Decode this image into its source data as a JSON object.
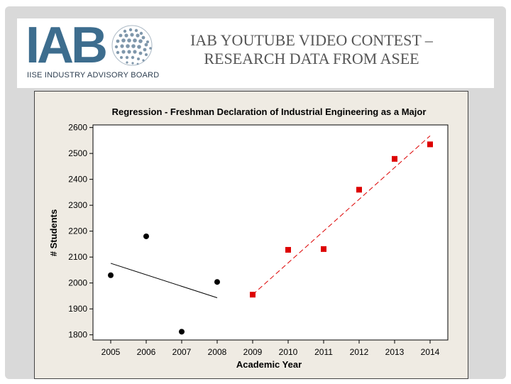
{
  "slide": {
    "title_line1": "IAB YOUTUBE VIDEO CONTEST –",
    "title_line2": "RESEARCH DATA FROM ASEE"
  },
  "logo": {
    "letters": "IAB",
    "caption": "IISE INDUSTRY ADVISORY BOARD",
    "color": "#3d6d8e"
  },
  "chart_data": {
    "type": "scatter",
    "title": "Regression - Freshman Declaration of Industrial Engineering as a Major",
    "xlabel": "Academic Year",
    "ylabel": "# Students",
    "xlim": [
      2004.5,
      2014.5
    ],
    "ylim": [
      1780,
      2610
    ],
    "x_ticks": [
      2005,
      2006,
      2007,
      2008,
      2009,
      2010,
      2011,
      2012,
      2013,
      2014
    ],
    "y_ticks": [
      1800,
      1900,
      2000,
      2100,
      2200,
      2300,
      2400,
      2500,
      2600
    ],
    "grid": false,
    "series": [
      {
        "marker": "circle",
        "color": "#000000",
        "points": [
          [
            2005,
            2030
          ],
          [
            2006,
            2180
          ],
          [
            2007,
            1812
          ],
          [
            2008,
            2004
          ]
        ],
        "fit_line": {
          "x": [
            2005,
            2008
          ],
          "y": [
            2076,
            1943
          ],
          "style": "solid",
          "color": "#000000"
        }
      },
      {
        "marker": "square",
        "color": "#dd0000",
        "points": [
          [
            2009,
            1955
          ],
          [
            2010,
            2128
          ],
          [
            2011,
            2131
          ],
          [
            2012,
            2360
          ],
          [
            2013,
            2479
          ],
          [
            2014,
            2535
          ]
        ],
        "fit_line": {
          "x": [
            2009,
            2014
          ],
          "y": [
            1955,
            2568
          ],
          "style": "dashed",
          "color": "#dd0000"
        }
      }
    ]
  }
}
